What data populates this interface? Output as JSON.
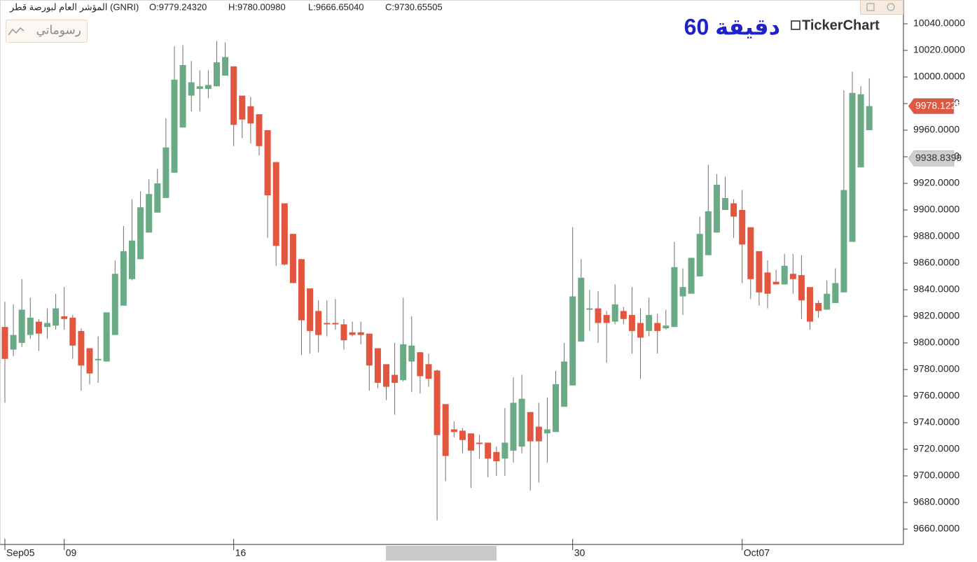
{
  "header": {
    "symbol": "المؤشر العام لبورصة قطر (GNRI)",
    "ohlc_labels": [
      "O:9779.24320",
      "H:9780.00980",
      "L:9666.65040",
      "C:9730.65505"
    ],
    "drawings_button": "رسوماتي",
    "interval": "60 دقيقة",
    "brand": "TickerChart"
  },
  "chart_data": {
    "type": "candlestick",
    "up_color": "#6aaa84",
    "down_color": "#e2553f",
    "wick_color": "#707070",
    "categories": [
      "Sep05",
      null,
      null,
      null,
      null,
      null,
      null,
      "09",
      null,
      null,
      null,
      null,
      null,
      null,
      null,
      null,
      null,
      null,
      null,
      null,
      null,
      null,
      null,
      null,
      null,
      null,
      null,
      "16",
      null,
      null,
      null,
      null,
      null,
      null,
      null,
      null,
      null,
      null,
      null,
      null,
      null,
      null,
      null,
      null,
      null,
      null,
      null,
      null,
      null,
      null,
      null,
      null,
      null,
      null,
      null,
      null,
      null,
      null,
      null,
      null,
      null,
      null,
      null,
      null,
      null,
      null,
      null,
      "30",
      null,
      null,
      null,
      null,
      null,
      null,
      null,
      null,
      null,
      null,
      null,
      null,
      null,
      null,
      null,
      null,
      null,
      null,
      null,
      "Oct07",
      null,
      null,
      null,
      null,
      null,
      null,
      null,
      null,
      null,
      null,
      null,
      null,
      null,
      null,
      null
    ],
    "open": [
      9812,
      9795,
      9800,
      9806,
      9816,
      9812,
      9813,
      9820,
      9819,
      9809,
      9796,
      9787,
      9786,
      9806,
      9828,
      9848,
      9863,
      9883,
      9898,
      9909,
      9928,
      9962,
      9986,
      9991,
      9991,
      9993,
      10001,
      10008,
      9986,
      9978,
      9972,
      9960,
      9936,
      9905,
      9882,
      9863,
      9841,
      9824,
      9815,
      9815,
      9814,
      9808,
      9808,
      9807,
      9796,
      9784,
      9776,
      9772,
      9786,
      9793,
      9784,
      9779.2432,
      9754,
      9735,
      9734,
      9732,
      9725,
      9725,
      9718,
      9713,
      9719,
      9722,
      9748,
      9737,
      9732,
      9733,
      9752,
      9768,
      9801,
      9825,
      9826,
      9821,
      9816,
      9824,
      9821,
      9815,
      9809,
      9815,
      9811,
      9812,
      9835,
      9837,
      9850,
      9866,
      9883,
      9900,
      9905,
      9900,
      9887,
      9869,
      9853,
      9846,
      9844,
      9852,
      9851,
      9842,
      9830,
      9825,
      9830,
      9838,
      9876,
      9932,
      9960
    ],
    "high": [
      9831,
      9829,
      9848,
      9834,
      9818,
      9826,
      9837,
      9842,
      9821,
      9811,
      9796,
      9805,
      9823,
      9862,
      9888,
      9908,
      9914,
      9923,
      9931,
      9969,
      10023,
      10024,
      10012,
      10005,
      10005,
      10027,
      10026,
      10008,
      9986,
      9985,
      9972,
      9960,
      9936,
      9905,
      9882,
      9863,
      9841,
      9832,
      9832,
      9833,
      9818,
      9816,
      9816,
      9807,
      9796,
      9784,
      9800,
      9834,
      9820,
      9793,
      9792,
      9780.0098,
      9754,
      9741,
      9736,
      9732,
      9731,
      9725,
      9722,
      9751,
      9774,
      9776,
      9748,
      9755,
      9759,
      9779,
      9800,
      9887,
      9863,
      9840,
      9839,
      9824,
      9844,
      9827,
      9842,
      9826,
      9834,
      9822,
      9825,
      9876,
      9856,
      9864,
      9895,
      9934,
      9927,
      9925,
      9908,
      9915,
      9887,
      9869,
      9862,
      9855,
      9867,
      9867,
      9866,
      9842,
      9832,
      9847,
      9856,
      9990,
      10004,
      9993,
      9999
    ],
    "low": [
      9755,
      9790,
      9797,
      9803,
      9794,
      9803,
      9810,
      9810,
      9788,
      9764,
      9769,
      9770,
      9786,
      9806,
      9828,
      9847,
      9863,
      9883,
      9898,
      9909,
      9928,
      9962,
      9974,
      9974,
      9984,
      9993,
      10001,
      9948,
      9954,
      9950,
      9941,
      9879,
      9858,
      9858,
      9845,
      9791,
      9792,
      9793,
      9805,
      9810,
      9795,
      9805,
      9799,
      9764,
      9766,
      9757,
      9746,
      9771,
      9763,
      9762,
      9767,
      9666.6504,
      9696,
      9729,
      9717,
      9691,
      9713,
      9699,
      9700,
      9700,
      9710,
      9717,
      9689,
      9695,
      9710,
      9733,
      9752,
      9768,
      9801,
      9809,
      9800,
      9785,
      9814,
      9814,
      9792,
      9773,
      9805,
      9792,
      9810,
      9812,
      9821,
      9837,
      9850,
      9866,
      9883,
      9900,
      9879,
      9845,
      9833,
      9828,
      9826,
      9844,
      9844,
      9837,
      9818,
      9810,
      9819,
      9825,
      9830,
      9838,
      9876,
      9932,
      9960
    ],
    "close": [
      9788,
      9806,
      9825,
      9819,
      9807,
      9815,
      9826,
      9818,
      9798,
      9783,
      9777,
      9788,
      9823,
      9852,
      9869,
      9877,
      9902,
      9912,
      9920,
      9947,
      9998,
      10009,
      9996,
      9993,
      9994,
      10011,
      10015,
      9964,
      9968,
      9965,
      9948,
      9911,
      9873,
      9859,
      9845,
      9817,
      9809,
      9806,
      9814,
      9814,
      9802,
      9806,
      9806,
      9783,
      9770,
      9767,
      9770,
      9799,
      9798,
      9775,
      9773,
      9730.6551,
      9715,
      9733,
      9727,
      9719,
      9724,
      9713,
      9711,
      9725,
      9755,
      9758,
      9726,
      9726,
      9735,
      9769,
      9786,
      9835,
      9849,
      9826,
      9815,
      9815,
      9829,
      9818,
      9809,
      9804,
      9821,
      9809,
      9813,
      9857,
      9842,
      9864,
      9882,
      9899,
      9919,
      9909,
      9895,
      9874,
      9848,
      9838,
      9837,
      9844,
      9858,
      9848,
      9832,
      9816,
      9824,
      9837,
      9845,
      9915,
      9988,
      9987,
      9978.1226
    ],
    "ylim": [
      9648.4,
      10057.9
    ],
    "yticks": [
      {
        "value": 9660,
        "label": "9660.0000"
      },
      {
        "value": 9680,
        "label": "9680.0000"
      },
      {
        "value": 9700,
        "label": "9700.0000"
      },
      {
        "value": 9720,
        "label": "9720.0000"
      },
      {
        "value": 9740,
        "label": "9740.0000"
      },
      {
        "value": 9760,
        "label": "9760.0000"
      },
      {
        "value": 9780,
        "label": "9780.0000"
      },
      {
        "value": 9800,
        "label": "9800.0000"
      },
      {
        "value": 9820,
        "label": "9820.0000"
      },
      {
        "value": 9840,
        "label": "9840.0000"
      },
      {
        "value": 9860,
        "label": "9860.0000"
      },
      {
        "value": 9880,
        "label": "9880.0000"
      },
      {
        "value": 9900,
        "label": "9900.0000"
      },
      {
        "value": 9920,
        "label": "9920.0000"
      },
      {
        "value": 9940,
        "label": "9940.0000"
      },
      {
        "value": 9960,
        "label": "9960.0000"
      },
      {
        "value": 9980,
        "label": "9980.0000"
      },
      {
        "value": 10000,
        "label": "10000.0000"
      },
      {
        "value": 10020,
        "label": "10020.0000"
      },
      {
        "value": 10040,
        "label": "10040.0000"
      }
    ],
    "price_markers": [
      {
        "value": 9978.1226,
        "color": "#e2553f",
        "text_color": "#ffffff"
      },
      {
        "value": 9938.8399,
        "color": "#cfcfcf",
        "text_color": "#333333"
      }
    ]
  }
}
